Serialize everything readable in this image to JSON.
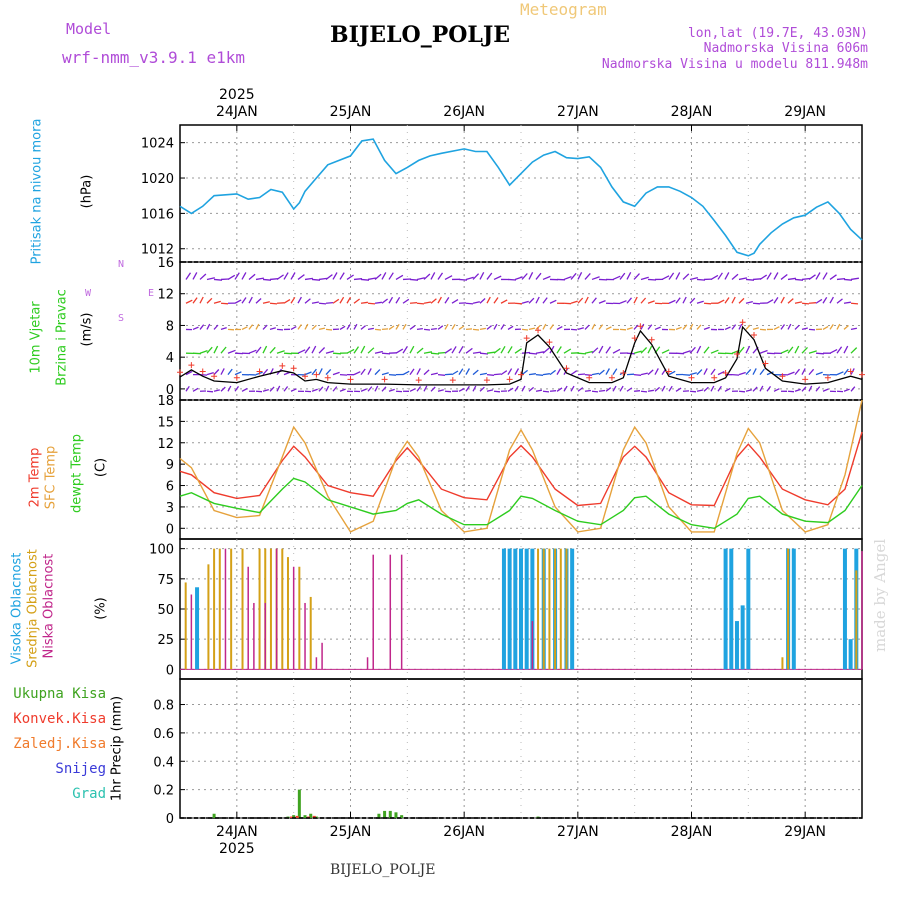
{
  "header": {
    "model_label": "Model",
    "model_name": "wrf-nmm_v3.9.1 e1km",
    "station": "BIJELO_POLJE",
    "meteogram": "Meteogram",
    "lonlat": "lon,lat (19.7E, 43.03N)",
    "elevation": "Nadmorska Visina 606m",
    "model_elevation": "Nadmorska Visina u modelu 811.948m",
    "footer_station": "BIJELO_POLJE",
    "credit": "made by Angel",
    "year_top": "2025",
    "year_bottom": "2025"
  },
  "colors": {
    "pressure": "#1fa3e0",
    "t2m": "#ef3b2c",
    "sfc": "#e6a23c",
    "dewpt": "#2ecc1f",
    "high_cloud": "#1fa3e0",
    "mid_cloud": "#d4a017",
    "low_cloud": "#c0268a",
    "barb": "#7b1fd0",
    "precip_total": "#3fa320"
  },
  "panel_labels": {
    "pressure": [
      "Pritisak na nivou mora",
      "(hPa)"
    ],
    "wind": [
      "10m Vjetar",
      "Brzina i Pravac",
      "(m/s)"
    ],
    "wind_compass": [
      "N",
      "S",
      "W",
      "E"
    ],
    "temp": [
      "2m Temp",
      "SFC Temp",
      "dewpt Temp",
      "(C)"
    ],
    "cloud": [
      "Visoka Oblacnost",
      "Srednja Oblacnost",
      "Niska Oblacnost",
      "(%)"
    ],
    "precip_legend": [
      "Ukupna Kisa",
      "Konvek.Kisa",
      "Zaledj.Kisa",
      "Snijeg",
      "Grad"
    ],
    "precip_axis": "1hr Precip (mm)"
  },
  "chart_data": [
    {
      "type": "line",
      "name": "pressure",
      "x": [
        23.5,
        23.6,
        23.7,
        23.8,
        24.0,
        24.1,
        24.2,
        24.3,
        24.4,
        24.5,
        24.55,
        24.6,
        24.7,
        24.8,
        25.0,
        25.1,
        25.2,
        25.3,
        25.4,
        25.5,
        25.6,
        25.7,
        25.8,
        26.0,
        26.1,
        26.2,
        26.3,
        26.4,
        26.5,
        26.6,
        26.7,
        26.8,
        26.9,
        27.0,
        27.1,
        27.2,
        27.3,
        27.4,
        27.5,
        27.6,
        27.7,
        27.8,
        27.9,
        28.0,
        28.1,
        28.2,
        28.3,
        28.4,
        28.5,
        28.55,
        28.6,
        28.7,
        28.8,
        28.9,
        29.0,
        29.1,
        29.2,
        29.3,
        29.4,
        29.5
      ],
      "values": [
        1016.8,
        1016.0,
        1016.8,
        1018.0,
        1018.2,
        1017.6,
        1017.8,
        1018.7,
        1018.4,
        1016.5,
        1017.2,
        1018.5,
        1020.0,
        1021.5,
        1022.5,
        1024.2,
        1024.4,
        1022.0,
        1020.5,
        1021.2,
        1022.0,
        1022.5,
        1022.8,
        1023.3,
        1023.0,
        1023.0,
        1021.2,
        1019.2,
        1020.5,
        1021.8,
        1022.6,
        1023.0,
        1022.3,
        1022.2,
        1022.4,
        1021.2,
        1019.0,
        1017.3,
        1016.8,
        1018.3,
        1019.0,
        1019.0,
        1018.5,
        1017.8,
        1016.8,
        1015.2,
        1013.5,
        1011.6,
        1011.2,
        1011.5,
        1012.5,
        1013.8,
        1014.8,
        1015.5,
        1015.8,
        1016.7,
        1017.3,
        1016.0,
        1014.2,
        1013.0
      ],
      "ylim": [
        1010.5,
        1026
      ],
      "yticks": [
        1012,
        1016,
        1020,
        1024
      ]
    },
    {
      "type": "line",
      "name": "wind_speed",
      "x": [
        23.5,
        23.6,
        23.7,
        23.8,
        24.0,
        24.2,
        24.4,
        24.5,
        24.6,
        24.7,
        24.8,
        25.0,
        25.3,
        25.6,
        25.9,
        26.2,
        26.4,
        26.5,
        26.55,
        26.65,
        26.75,
        26.9,
        27.1,
        27.3,
        27.4,
        27.5,
        27.55,
        27.65,
        27.8,
        28.0,
        28.2,
        28.3,
        28.4,
        28.45,
        28.55,
        28.65,
        28.8,
        29.0,
        29.2,
        29.4,
        29.5
      ],
      "values": [
        1.5,
        2.4,
        1.6,
        1.0,
        0.8,
        1.6,
        2.3,
        2.0,
        1.0,
        1.2,
        0.8,
        0.6,
        0.6,
        0.5,
        0.5,
        0.5,
        0.6,
        1.2,
        5.8,
        6.8,
        5.3,
        2.0,
        0.8,
        0.8,
        1.4,
        5.8,
        7.3,
        5.6,
        1.6,
        0.8,
        0.8,
        1.4,
        3.8,
        7.8,
        6.2,
        2.6,
        1.0,
        0.6,
        0.8,
        1.6,
        1.2
      ],
      "ylim": [
        -1.4,
        16
      ],
      "yticks": [
        0,
        4,
        8,
        12,
        16
      ]
    },
    {
      "type": "line",
      "name": "temperature",
      "x": [
        23.5,
        23.6,
        23.8,
        24.0,
        24.2,
        24.4,
        24.5,
        24.6,
        24.8,
        25.0,
        25.2,
        25.4,
        25.5,
        25.6,
        25.8,
        26.0,
        26.2,
        26.4,
        26.5,
        26.6,
        26.8,
        27.0,
        27.2,
        27.4,
        27.5,
        27.6,
        27.8,
        28.0,
        28.2,
        28.4,
        28.5,
        28.6,
        28.8,
        29.0,
        29.2,
        29.35,
        29.5
      ],
      "series": [
        {
          "name": "2m Temp",
          "values": [
            8,
            7.5,
            5,
            4.2,
            4.6,
            9.5,
            11.5,
            10,
            6,
            5,
            4.5,
            9.5,
            11.3,
            9.5,
            5.5,
            4.3,
            4.0,
            10,
            11.6,
            10,
            5.5,
            3.2,
            3.5,
            10,
            11.5,
            10,
            5,
            3.3,
            3.2,
            10,
            11.8,
            10,
            5.5,
            4,
            3.3,
            5.5,
            13.5
          ]
        },
        {
          "name": "SFC Temp",
          "values": [
            9.8,
            8.5,
            2.5,
            1.5,
            1.8,
            10,
            14.2,
            12,
            4.5,
            -0.5,
            1.0,
            9.8,
            12.2,
            10,
            2.5,
            -0.5,
            0.0,
            11,
            13.8,
            11,
            3,
            -0.5,
            0.0,
            11,
            14.2,
            12,
            3,
            -0.5,
            -0.5,
            10.5,
            14,
            12,
            2.5,
            -0.5,
            0.5,
            7.5,
            18
          ]
        },
        {
          "name": "dewpt Temp",
          "values": [
            4.5,
            5,
            3.5,
            2.8,
            2.2,
            5.5,
            7,
            6.5,
            4,
            3,
            2,
            2.5,
            3.5,
            4,
            2,
            0.5,
            0.5,
            2.5,
            4.5,
            4.2,
            2.5,
            1,
            0.5,
            2.5,
            4.3,
            4.5,
            2,
            0.5,
            0,
            2,
            4.2,
            4.5,
            2,
            1,
            0.8,
            2.5,
            6
          ]
        }
      ],
      "ylim": [
        -1.5,
        18
      ],
      "yticks": [
        0,
        3,
        6,
        9,
        12,
        15,
        18
      ]
    },
    {
      "type": "bar",
      "name": "cloud_cover",
      "series": [
        {
          "name": "Visoka Oblacnost",
          "x": [
            23.65,
            26.35,
            26.4,
            26.45,
            26.5,
            26.55,
            26.6,
            26.7,
            26.8,
            26.9,
            26.95,
            28.3,
            28.35,
            28.4,
            28.45,
            28.5,
            28.85,
            28.9,
            29.35,
            29.4,
            29.45
          ],
          "values": [
            68,
            100,
            100,
            100,
            100,
            100,
            100,
            100,
            100,
            100,
            100,
            100,
            100,
            40,
            53,
            100,
            100,
            100,
            100,
            25,
            100
          ]
        },
        {
          "name": "Srednja Oblacnost",
          "x": [
            23.55,
            23.75,
            23.8,
            23.85,
            23.95,
            24.05,
            24.2,
            24.25,
            24.3,
            24.35,
            24.4,
            24.45,
            24.55,
            24.65,
            26.65,
            26.7,
            26.75,
            26.8,
            26.85,
            26.9,
            28.8,
            28.85,
            29.45
          ],
          "values": [
            72,
            87,
            100,
            100,
            100,
            100,
            100,
            100,
            100,
            100,
            100,
            93,
            85,
            60,
            100,
            100,
            100,
            100,
            100,
            100,
            10,
            100,
            82
          ]
        },
        {
          "name": "Niska Oblacnost",
          "x": [
            23.6,
            23.9,
            24.1,
            24.15,
            24.25,
            24.35,
            24.5,
            24.6,
            24.7,
            24.75,
            25.15,
            25.2,
            25.35,
            25.45,
            26.6,
            29.5
          ],
          "values": [
            62,
            100,
            85,
            55,
            55,
            100,
            85,
            55,
            10,
            22,
            10,
            95,
            95,
            95,
            40,
            98
          ]
        }
      ],
      "ylim": [
        -8,
        108
      ],
      "yticks": [
        0,
        25,
        50,
        75,
        100
      ]
    },
    {
      "type": "bar",
      "name": "precipitation_1hr",
      "series": [
        {
          "name": "Ukupna Kisa",
          "x": [
            23.8,
            24.45,
            24.5,
            24.55,
            24.6,
            24.65,
            24.7,
            25.25,
            25.3,
            25.35,
            25.4,
            25.45,
            26.65
          ],
          "values": [
            0.03,
            0.01,
            0.02,
            0.2,
            0.02,
            0.03,
            0.01,
            0.03,
            0.05,
            0.05,
            0.04,
            0.02,
            0.01
          ]
        },
        {
          "name": "Konvek.Kisa",
          "x": [
            24.45,
            24.5,
            24.6,
            24.65
          ],
          "values": [
            0.01,
            0.015,
            0.01,
            0.015
          ]
        }
      ],
      "ylim": [
        0,
        0.98
      ],
      "yticks": [
        0,
        0.2,
        0.4,
        0.6,
        0.8
      ]
    }
  ],
  "time_axis": {
    "day_labels": [
      "24JAN",
      "25JAN",
      "26JAN",
      "27JAN",
      "28JAN",
      "29JAN"
    ],
    "day_values": [
      24,
      25,
      26,
      27,
      28,
      29
    ],
    "xlim": [
      23.5,
      29.5
    ]
  }
}
